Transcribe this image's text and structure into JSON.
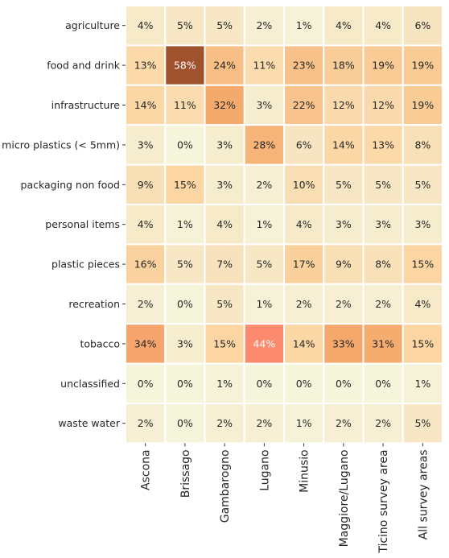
{
  "chart_data": {
    "type": "heatmap",
    "title": "",
    "xlabel": "",
    "ylabel": "",
    "rows": [
      "agriculture",
      "food and drink",
      "infrastructure",
      "micro plastics (< 5mm)",
      "packaging non food",
      "personal items",
      "plastic pieces",
      "recreation",
      "tobacco",
      "unclassified",
      "waste water"
    ],
    "columns": [
      "Ascona",
      "Brissago",
      "Gambarogno",
      "Lugano",
      "Minusio",
      "Maggiore/Lugano",
      "Ticino survey area",
      "All survey areas"
    ],
    "values": [
      [
        4,
        5,
        5,
        2,
        1,
        4,
        4,
        6
      ],
      [
        13,
        58,
        24,
        11,
        23,
        18,
        19,
        19
      ],
      [
        14,
        11,
        32,
        3,
        22,
        12,
        12,
        19
      ],
      [
        3,
        0,
        3,
        28,
        6,
        14,
        13,
        8
      ],
      [
        9,
        15,
        3,
        2,
        10,
        5,
        5,
        5
      ],
      [
        4,
        1,
        4,
        1,
        4,
        3,
        3,
        3
      ],
      [
        16,
        5,
        7,
        5,
        17,
        9,
        8,
        15
      ],
      [
        2,
        0,
        5,
        1,
        2,
        2,
        2,
        4
      ],
      [
        34,
        3,
        15,
        44,
        14,
        33,
        31,
        15
      ],
      [
        0,
        0,
        1,
        0,
        0,
        0,
        0,
        1
      ],
      [
        2,
        0,
        2,
        2,
        1,
        2,
        2,
        5
      ]
    ],
    "value_suffix": "%",
    "colorbar": false,
    "colors": {
      "cell_border": "#ffffff",
      "text_dark": "#262626",
      "text_light": "#ffffff",
      "scale": [
        "#f5f5dc",
        "#f7e4c0",
        "#fbd7a5",
        "#f4aa6c",
        "#fb8a6f",
        "#a0522d"
      ]
    }
  }
}
